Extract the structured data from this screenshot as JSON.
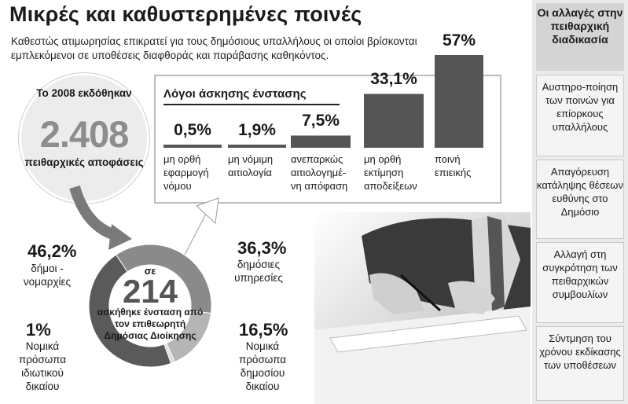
{
  "header": {
    "title": "Μικρές και καθυστερημένες ποινές",
    "subtitle": "Καθεστώς ατιμωρησίας επικρατεί για τους δημόσιους υπαλλήλους οι οποίοι βρίσκονται εμπλεκόμενοι σε υποθέσεις διαφθοράς και παράβασης καθηκόντος."
  },
  "badge": {
    "top": "Το 2008 εκδόθηκαν",
    "number": "2.408",
    "bottom": "πειθαρχικές αποφάσεις"
  },
  "donut_center": {
    "pre": "σε",
    "number": "214",
    "post": "ασκήθηκε ένσταση από τον επιθεωρητή Δημόσιας Διοίκησης"
  },
  "sidebar": {
    "heading": "Οι αλλαγές στην πειθαρχική διαδικασία",
    "items": [
      "Αυστηρο-ποίηση των ποινών για επίορκους υπαλλήλους",
      "Απαγόρευση κατάληψης θέσεων ευθύνης στο Δημόσιο",
      "Αλλαγή στη συγκρότηση των πειθαρχικών συμβουλίων",
      "Σύντμηση του χρόνου εκδίκασης των υποθέσεων"
    ]
  },
  "colors": {
    "bar": "#555555",
    "donut_dark": "#5a5a5a",
    "donut_mid": "#8a8a8a",
    "donut_light": "#b5b5b5",
    "sidebar_bg": "#ebebeb"
  },
  "icons": [
    "curved-arrow-down-icon",
    "arrow-up-icon"
  ],
  "chart_data": [
    {
      "type": "bar",
      "title": "Λόγοι άσκησης ένστασης",
      "categories": [
        "μη ορθή εφαρμογή νόμου",
        "μη νόμιμη αιτιολογία",
        "ανεπαρκώς αιτιολογημέ-νη απόφαση",
        "μη ορθή εκτίμηση αποδείξεων",
        "ποινή επιεικής"
      ],
      "values": [
        0.5,
        1.9,
        7.5,
        33.1,
        57
      ],
      "value_labels": [
        "0,5%",
        "1,9%",
        "7,5%",
        "33,1%",
        "57%"
      ],
      "unit": "%"
    },
    {
      "type": "pie",
      "labels": [
        "δήμοι - νομαρχίες",
        "δημόσιες υπηρεσίες",
        "Νομικά πρόσωπα δημοσίου δικαίου",
        "Νομικά πρόσωπα ιδιωτικού δικαίου"
      ],
      "values": [
        46.2,
        36.3,
        16.5,
        1
      ],
      "value_labels": [
        "46,2%",
        "36,3%",
        "16,5%",
        "1%"
      ],
      "unit": "%"
    }
  ]
}
